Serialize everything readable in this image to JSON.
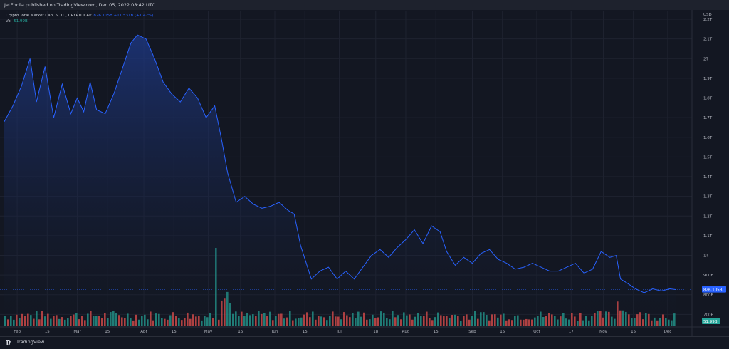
{
  "header": {
    "publisher_text": "JetEncila published on TradingView.com, Dec 05, 2022 08:42 UTC"
  },
  "legend": {
    "symbol_text": "Crypto Total Market Cap, 5, 1D, CRYPTOCAP",
    "value_text": "826.105B +11.531B (+1.42%)",
    "vol_label": "Vol",
    "vol_value": "51.99B"
  },
  "price_axis": {
    "unit": "USD",
    "labels": [
      "2.2T",
      "2.1T",
      "2T",
      "1.9T",
      "1.8T",
      "1.7T",
      "1.6T",
      "1.5T",
      "1.4T",
      "1.3T",
      "1.2T",
      "1.1T",
      "1T",
      "900B",
      "800B",
      "700B"
    ],
    "current_price_label": "826.105B",
    "current_volume_label": "51.99B"
  },
  "time_axis": {
    "labels": [
      "Feb",
      "15",
      "Mar",
      "15",
      "Apr",
      "15",
      "May",
      "16",
      "Jun",
      "15",
      "Jul",
      "18",
      "Aug",
      "15",
      "Sep",
      "15",
      "Oct",
      "17",
      "Nov",
      "15",
      "Dec"
    ]
  },
  "footer": {
    "logo_text": "TradingView"
  },
  "colors": {
    "background": "#131722",
    "line": "#2962ff",
    "area_top": "#1e3a8a",
    "volume_up": "#26a69a",
    "volume_down": "#ef5350",
    "price_tag": "#2962ff",
    "volume_tag": "#26a69a"
  },
  "chart_data": {
    "type": "area",
    "title": "Crypto Total Market Cap, 5, 1D, CRYPTOCAP",
    "ylabel": "USD",
    "ylim": [
      640,
      2240
    ],
    "y_unit": "B",
    "grid": true,
    "x_ticks": [
      "Feb",
      "15",
      "Mar",
      "15",
      "Apr",
      "15",
      "May",
      "16",
      "Jun",
      "15",
      "Jul",
      "18",
      "Aug",
      "15",
      "Sep",
      "15",
      "Oct",
      "17",
      "Nov",
      "15",
      "Dec"
    ],
    "series": [
      {
        "name": "Crypto Total Market Cap",
        "dates": [
          "2022-01-26",
          "2022-01-30",
          "2022-02-03",
          "2022-02-07",
          "2022-02-10",
          "2022-02-14",
          "2022-02-18",
          "2022-02-22",
          "2022-02-26",
          "2022-03-01",
          "2022-03-04",
          "2022-03-07",
          "2022-03-10",
          "2022-03-14",
          "2022-03-18",
          "2022-03-22",
          "2022-03-26",
          "2022-03-29",
          "2022-04-02",
          "2022-04-06",
          "2022-04-10",
          "2022-04-14",
          "2022-04-18",
          "2022-04-22",
          "2022-04-26",
          "2022-04-30",
          "2022-05-04",
          "2022-05-07",
          "2022-05-10",
          "2022-05-14",
          "2022-05-18",
          "2022-05-22",
          "2022-05-26",
          "2022-05-30",
          "2022-06-03",
          "2022-06-07",
          "2022-06-10",
          "2022-06-13",
          "2022-06-18",
          "2022-06-22",
          "2022-06-26",
          "2022-06-30",
          "2022-07-04",
          "2022-07-08",
          "2022-07-12",
          "2022-07-16",
          "2022-07-20",
          "2022-07-24",
          "2022-07-28",
          "2022-08-01",
          "2022-08-05",
          "2022-08-09",
          "2022-08-13",
          "2022-08-17",
          "2022-08-20",
          "2022-08-24",
          "2022-08-28",
          "2022-09-01",
          "2022-09-05",
          "2022-09-09",
          "2022-09-13",
          "2022-09-17",
          "2022-09-21",
          "2022-09-25",
          "2022-09-29",
          "2022-10-03",
          "2022-10-07",
          "2022-10-11",
          "2022-10-15",
          "2022-10-19",
          "2022-10-23",
          "2022-10-27",
          "2022-10-31",
          "2022-11-04",
          "2022-11-07",
          "2022-11-09",
          "2022-11-12",
          "2022-11-16",
          "2022-11-20",
          "2022-11-24",
          "2022-11-28",
          "2022-12-02",
          "2022-12-05"
        ],
        "values": [
          1680,
          1760,
          1860,
          2000,
          1780,
          1960,
          1700,
          1870,
          1720,
          1800,
          1730,
          1880,
          1740,
          1720,
          1820,
          1950,
          2080,
          2120,
          2100,
          2000,
          1880,
          1820,
          1780,
          1850,
          1800,
          1700,
          1760,
          1600,
          1420,
          1270,
          1300,
          1260,
          1240,
          1250,
          1270,
          1230,
          1210,
          1050,
          880,
          920,
          940,
          880,
          920,
          880,
          940,
          1000,
          1030,
          990,
          1040,
          1080,
          1130,
          1060,
          1150,
          1120,
          1020,
          950,
          990,
          960,
          1010,
          1030,
          980,
          960,
          930,
          940,
          960,
          940,
          920,
          920,
          940,
          960,
          910,
          930,
          1020,
          990,
          1000,
          880,
          860,
          830,
          810,
          830,
          820,
          830,
          826
        ]
      }
    ]
  }
}
